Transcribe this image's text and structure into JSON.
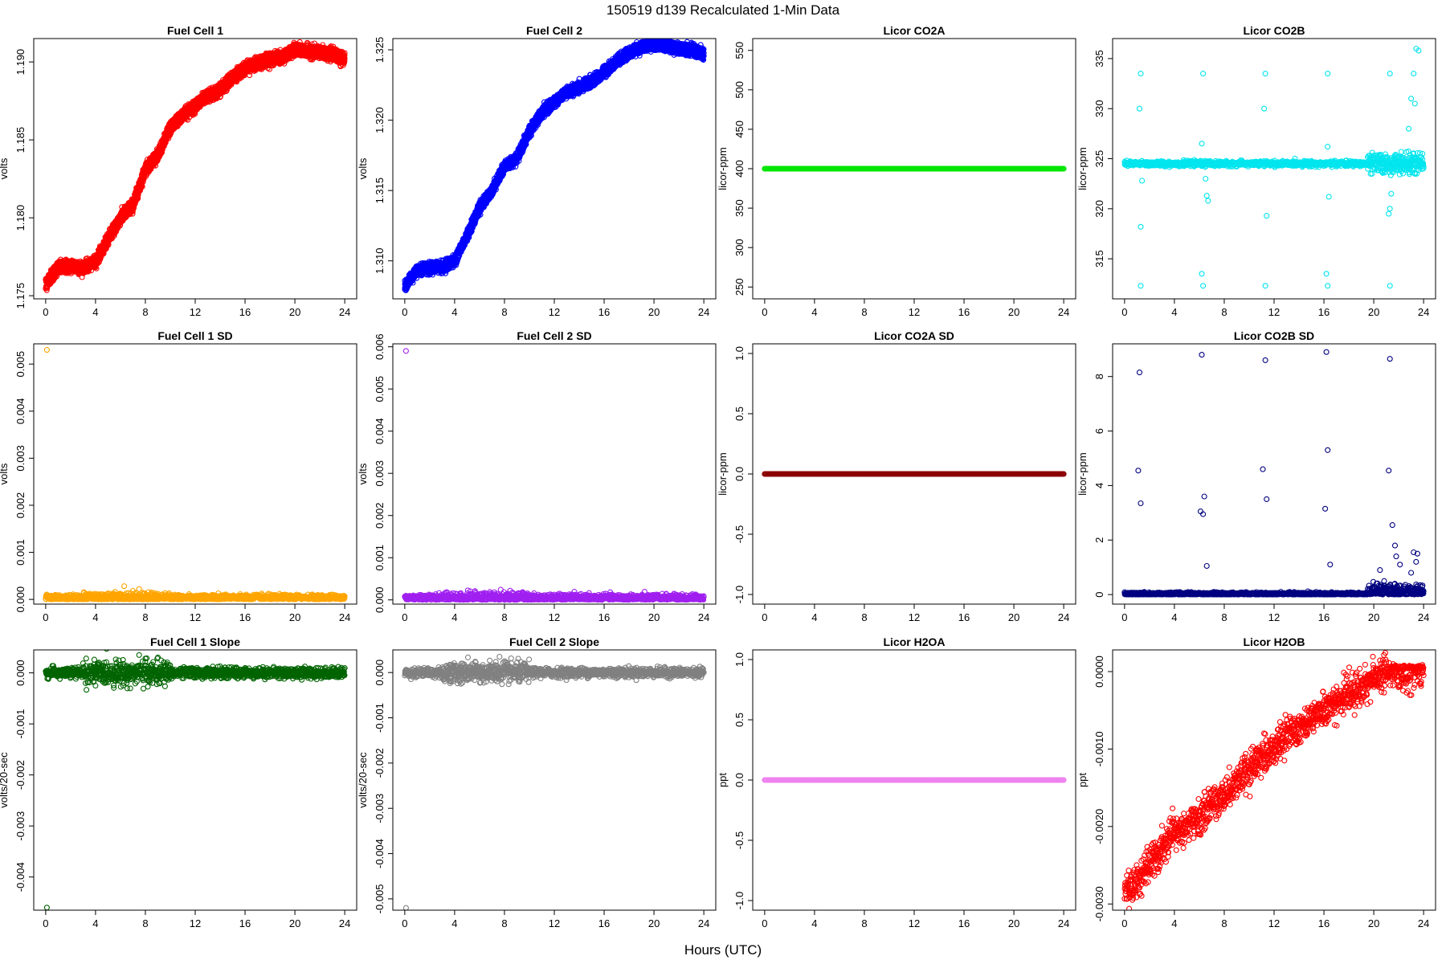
{
  "figure": {
    "title": "150519   d139   Recalculated 1-Min Data",
    "xlabel": "Hours (UTC)"
  },
  "chart_data": [
    {
      "type": "scatter",
      "title": "Fuel Cell 1",
      "ylabel": "volts",
      "xlim": [
        0,
        24
      ],
      "ylim": [
        1.1748,
        1.1915
      ],
      "xticks": [
        0,
        4,
        8,
        12,
        16,
        20,
        24
      ],
      "yticks": [
        1.175,
        1.18,
        1.185,
        1.19
      ],
      "ytick_labels": [
        "1.175",
        "1.180",
        "1.185",
        "1.190"
      ],
      "color": "#ff0000",
      "pattern": "curve",
      "bands": 2,
      "band_gap": 0.0004,
      "noise": 0.00012,
      "x": [
        0,
        0.5,
        1,
        2,
        3,
        4,
        5,
        6,
        7,
        8,
        9,
        10,
        11,
        12,
        13,
        14,
        15,
        16,
        17,
        18,
        19,
        20,
        21,
        22,
        23,
        23.9
      ],
      "y": [
        1.1757,
        1.1763,
        1.1768,
        1.1769,
        1.1768,
        1.1772,
        1.1786,
        1.18,
        1.1808,
        1.1831,
        1.184,
        1.1858,
        1.1866,
        1.1872,
        1.1878,
        1.1882,
        1.189,
        1.1896,
        1.1899,
        1.1902,
        1.1903,
        1.1908,
        1.1907,
        1.1906,
        1.1905,
        1.1902
      ]
    },
    {
      "type": "scatter",
      "title": "Fuel Cell 2",
      "ylabel": "volts",
      "xlim": [
        0,
        24
      ],
      "ylim": [
        1.3073,
        1.3258
      ],
      "xticks": [
        0,
        4,
        8,
        12,
        16,
        20,
        24
      ],
      "yticks": [
        1.31,
        1.315,
        1.32,
        1.325
      ],
      "ytick_labels": [
        "1.310",
        "1.315",
        "1.320",
        "1.325"
      ],
      "color": "#0000ff",
      "pattern": "curve",
      "bands": 2,
      "band_gap": 0.0004,
      "noise": 0.00012,
      "x": [
        0,
        0.5,
        1,
        2,
        3,
        4,
        5,
        6,
        7,
        8,
        9,
        10,
        11,
        12,
        13,
        14,
        15,
        16,
        17,
        18,
        19,
        20,
        21,
        22,
        23,
        23.9
      ],
      "y": [
        1.3082,
        1.3088,
        1.3093,
        1.3095,
        1.3096,
        1.31,
        1.3118,
        1.3138,
        1.315,
        1.3167,
        1.3173,
        1.3192,
        1.3205,
        1.3213,
        1.322,
        1.3223,
        1.3228,
        1.3234,
        1.3242,
        1.3248,
        1.3252,
        1.3254,
        1.3253,
        1.3251,
        1.325,
        1.3247
      ]
    },
    {
      "type": "scatter",
      "title": "Licor CO2A",
      "ylabel": "licor-ppm",
      "xlim": [
        0,
        24
      ],
      "ylim": [
        235,
        565
      ],
      "xticks": [
        0,
        4,
        8,
        12,
        16,
        20,
        24
      ],
      "yticks": [
        250,
        300,
        350,
        400,
        450,
        500,
        550
      ],
      "ytick_labels": [
        "250",
        "300",
        "350",
        "400",
        "450",
        "500",
        "550"
      ],
      "color": "#00e600",
      "pattern": "flat",
      "noise": 0,
      "x": [
        0,
        24
      ],
      "y": [
        400,
        400
      ]
    },
    {
      "type": "scatter",
      "title": "Licor CO2B",
      "ylabel": "licor-ppm",
      "xlim": [
        0,
        24
      ],
      "ylim": [
        311,
        337
      ],
      "xticks": [
        0,
        4,
        8,
        12,
        16,
        20,
        24
      ],
      "yticks": [
        315,
        320,
        325,
        330,
        335
      ],
      "ytick_labels": [
        "315",
        "320",
        "325",
        "330",
        "335"
      ],
      "color": "#00e5ee",
      "pattern": "co2b",
      "noise": 0.12,
      "x": [
        0,
        24
      ],
      "y": [
        324.5,
        324.5
      ],
      "spikes": [
        [
          1.3,
          333.5
        ],
        [
          6.3,
          333.5
        ],
        [
          11.3,
          333.5
        ],
        [
          16.3,
          333.5
        ],
        [
          21.3,
          333.5
        ],
        [
          1.3,
          312.3
        ],
        [
          6.3,
          312.3
        ],
        [
          11.3,
          312.3
        ],
        [
          16.3,
          312.3
        ],
        [
          21.3,
          312.3
        ],
        [
          1.2,
          330
        ],
        [
          11.2,
          330
        ],
        [
          1.4,
          322.8
        ],
        [
          6.5,
          323
        ],
        [
          6.6,
          321.3
        ],
        [
          6.7,
          320.8
        ],
        [
          16.4,
          321.2
        ],
        [
          16.3,
          326.2
        ],
        [
          6.2,
          326.5
        ],
        [
          1.3,
          318.2
        ],
        [
          11.4,
          319.3
        ],
        [
          21.2,
          319.5
        ],
        [
          21.4,
          321.5
        ],
        [
          21.3,
          320
        ],
        [
          6.2,
          313.5
        ],
        [
          16.2,
          313.5
        ],
        [
          23.4,
          336
        ],
        [
          23.6,
          335.8
        ],
        [
          23.2,
          333.5
        ],
        [
          23.0,
          331
        ],
        [
          22.8,
          328
        ],
        [
          23.3,
          330.5
        ]
      ]
    },
    {
      "type": "scatter",
      "title": "Fuel Cell 1 SD",
      "ylabel": "volts",
      "xlim": [
        0,
        24
      ],
      "ylim": [
        -0.0001,
        0.00543
      ],
      "xticks": [
        0,
        4,
        8,
        12,
        16,
        20,
        24
      ],
      "yticks": [
        0,
        0.001,
        0.002,
        0.003,
        0.004,
        0.005
      ],
      "ytick_labels": [
        "0.000",
        "0.001",
        "0.002",
        "0.003",
        "0.004",
        "0.005"
      ],
      "color": "#ffa500",
      "pattern": "sd",
      "noise": 3e-05,
      "x": [
        0,
        24
      ],
      "y": [
        4e-05,
        4e-05
      ],
      "spikes": [
        [
          0.1,
          0.0053
        ],
        [
          6.3,
          0.00028
        ],
        [
          7.0,
          0.00018
        ],
        [
          7.5,
          0.00022
        ],
        [
          8.5,
          0.00015
        ],
        [
          9.0,
          0.00012
        ],
        [
          5.0,
          0.00012
        ]
      ]
    },
    {
      "type": "scatter",
      "title": "Fuel Cell 2 SD",
      "ylabel": "volts",
      "xlim": [
        0,
        24
      ],
      "ylim": [
        -0.0001,
        0.00607
      ],
      "xticks": [
        0,
        4,
        8,
        12,
        16,
        20,
        24
      ],
      "yticks": [
        0,
        0.001,
        0.002,
        0.003,
        0.004,
        0.005,
        0.006
      ],
      "ytick_labels": [
        "0.000",
        "0.001",
        "0.002",
        "0.003",
        "0.004",
        "0.005",
        "0.006"
      ],
      "color": "#a020f0",
      "pattern": "sd",
      "noise": 4e-05,
      "x": [
        0,
        24
      ],
      "y": [
        5e-05,
        5e-05
      ],
      "spikes": [
        [
          0.1,
          0.0059
        ],
        [
          7.7,
          0.00024
        ],
        [
          7.2,
          0.00018
        ],
        [
          6.0,
          0.00014
        ],
        [
          8.3,
          0.00013
        ]
      ]
    },
    {
      "type": "scatter",
      "title": "Licor CO2A SD",
      "ylabel": "licor-ppm",
      "xlim": [
        0,
        24
      ],
      "ylim": [
        -1.08,
        1.08
      ],
      "xticks": [
        0,
        4,
        8,
        12,
        16,
        20,
        24
      ],
      "yticks": [
        -1,
        -0.5,
        0,
        0.5,
        1
      ],
      "ytick_labels": [
        "-1.0",
        "-0.5",
        "0.0",
        "0.5",
        "1.0"
      ],
      "color": "#8b0000",
      "pattern": "flat",
      "noise": 0,
      "x": [
        0,
        24
      ],
      "y": [
        0,
        0
      ]
    },
    {
      "type": "scatter",
      "title": "Licor CO2B SD",
      "ylabel": "licor-ppm",
      "xlim": [
        0,
        24
      ],
      "ylim": [
        -0.35,
        9.2
      ],
      "xticks": [
        0,
        4,
        8,
        12,
        16,
        20,
        24
      ],
      "yticks": [
        0,
        2,
        4,
        6,
        8
      ],
      "ytick_labels": [
        "0",
        "2",
        "4",
        "6",
        "8"
      ],
      "color": "#000080",
      "pattern": "sd2",
      "noise": 0.03,
      "x": [
        0,
        24
      ],
      "y": [
        0.02,
        0.02
      ],
      "spikes": [
        [
          1.2,
          8.15
        ],
        [
          1.1,
          4.55
        ],
        [
          1.3,
          3.35
        ],
        [
          6.2,
          8.8
        ],
        [
          6.1,
          3.05
        ],
        [
          6.3,
          2.95
        ],
        [
          6.4,
          3.6
        ],
        [
          6.6,
          1.05
        ],
        [
          11.3,
          8.6
        ],
        [
          11.1,
          4.6
        ],
        [
          11.4,
          3.5
        ],
        [
          16.2,
          8.9
        ],
        [
          16.1,
          3.15
        ],
        [
          16.3,
          5.3
        ],
        [
          16.5,
          1.1
        ],
        [
          21.3,
          8.65
        ],
        [
          21.2,
          4.55
        ],
        [
          21.5,
          2.55
        ],
        [
          21.7,
          1.8
        ],
        [
          21.8,
          1.4
        ],
        [
          23.2,
          1.55
        ],
        [
          23.5,
          1.5
        ],
        [
          23.4,
          1.2
        ],
        [
          22.1,
          1.1
        ],
        [
          20.5,
          0.9
        ],
        [
          23.0,
          0.8
        ]
      ]
    },
    {
      "type": "scatter",
      "title": "Fuel Cell 1 Slope",
      "ylabel": "volts/20-sec",
      "xlim": [
        0,
        24
      ],
      "ylim": [
        -0.00465,
        0.00045
      ],
      "xticks": [
        0,
        4,
        8,
        12,
        16,
        20,
        24
      ],
      "yticks": [
        -0.004,
        -0.003,
        -0.002,
        -0.001,
        0
      ],
      "ytick_labels": [
        "-0.004",
        "-0.003",
        "-0.002",
        "-0.001",
        "0.000"
      ],
      "color": "#006400",
      "pattern": "slope",
      "noise": 5e-05,
      "x": [
        0,
        24
      ],
      "y": [
        0,
        0
      ],
      "spikes": [
        [
          0.1,
          -0.0046
        ],
        [
          7.5,
          0.00035
        ],
        [
          8.0,
          0.00028
        ],
        [
          4.0,
          -0.00025
        ],
        [
          6.5,
          -0.0002
        ]
      ]
    },
    {
      "type": "scatter",
      "title": "Fuel Cell 2 Slope",
      "ylabel": "volts/20-sec",
      "xlim": [
        0,
        24
      ],
      "ylim": [
        -0.00525,
        0.0005
      ],
      "xticks": [
        0,
        4,
        8,
        12,
        16,
        20,
        24
      ],
      "yticks": [
        -0.005,
        -0.004,
        -0.003,
        -0.002,
        -0.001,
        0
      ],
      "ytick_labels": [
        "-0.005",
        "-0.004",
        "-0.003",
        "-0.002",
        "-0.001",
        "0.000"
      ],
      "color": "#808080",
      "pattern": "slope",
      "noise": 5e-05,
      "x": [
        0,
        24
      ],
      "y": [
        0,
        0
      ],
      "spikes": [
        [
          0.1,
          -0.0052
        ],
        [
          7.6,
          0.00035
        ],
        [
          8.0,
          0.00025
        ],
        [
          4.5,
          -0.00025
        ]
      ]
    },
    {
      "type": "scatter",
      "title": "Licor H2OA",
      "ylabel": "ppt",
      "xlim": [
        0,
        24
      ],
      "ylim": [
        -1.08,
        1.08
      ],
      "xticks": [
        0,
        4,
        8,
        12,
        16,
        20,
        24
      ],
      "yticks": [
        -1,
        -0.5,
        0,
        0.5,
        1
      ],
      "ytick_labels": [
        "-1.0",
        "-0.5",
        "0.0",
        "0.5",
        "1.0"
      ],
      "color": "#ee82ee",
      "pattern": "flat",
      "noise": 0,
      "x": [
        0,
        24
      ],
      "y": [
        0,
        0
      ]
    },
    {
      "type": "scatter",
      "title": "Licor H2OB",
      "ylabel": "ppt",
      "xlim": [
        0,
        24
      ],
      "ylim": [
        -0.00308,
        0.00028
      ],
      "xticks": [
        0,
        4,
        8,
        12,
        16,
        20,
        24
      ],
      "yticks": [
        -0.003,
        -0.002,
        -0.001,
        0
      ],
      "ytick_labels": [
        "-0.0030",
        "-0.0020",
        "-0.0010",
        "0.0000"
      ],
      "color": "#ff0000",
      "pattern": "h2ob",
      "noise": 0.00011,
      "x": [
        0,
        1,
        2,
        3,
        4,
        5,
        6,
        7,
        8,
        9,
        10,
        11,
        12,
        13,
        14,
        15,
        16,
        17,
        18,
        19,
        20,
        21,
        22,
        23,
        24
      ],
      "y": [
        -0.00285,
        -0.0027,
        -0.0025,
        -0.0023,
        -0.0021,
        -0.002,
        -0.0019,
        -0.0017,
        -0.0016,
        -0.0014,
        -0.0013,
        -0.0011,
        -0.001,
        -0.0008,
        -0.0007,
        -0.0006,
        -0.0005,
        -0.0004,
        -0.0003,
        -0.0002,
        -0.0001,
        0.0,
        0.0,
        0.0,
        0.0
      ]
    }
  ]
}
